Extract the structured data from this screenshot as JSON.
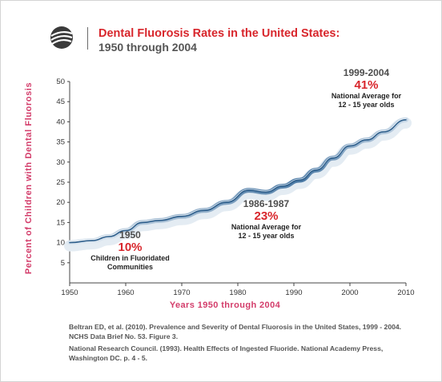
{
  "title": "Dental Fluorosis Rates in the United States:",
  "subtitle": "1950 through 2004",
  "chart_data": {
    "type": "line",
    "xlabel": "Years 1950 through 2004",
    "ylabel": "Percent of Children with Dental Fluorosis",
    "xlim": [
      1950,
      2010
    ],
    "ylim": [
      0,
      50
    ],
    "x_ticks": [
      "1950",
      "1960",
      "1970",
      "1980",
      "1990",
      "2000",
      "2010"
    ],
    "y_ticks": [
      "5",
      "10",
      "15",
      "20",
      "25",
      "30",
      "35",
      "40",
      "45",
      "50"
    ],
    "grid": false,
    "series": [
      {
        "x": [
          1950,
          1954,
          1957,
          1960,
          1963,
          1966,
          1970,
          1974,
          1978,
          1982,
          1985,
          1988,
          1991,
          1994,
          1997,
          2000,
          2003,
          2006,
          2010
        ],
        "y": [
          10,
          10.5,
          11.5,
          13,
          15,
          15.5,
          16.5,
          18,
          20,
          23,
          22.5,
          24,
          25.5,
          28,
          31,
          34,
          35.5,
          37.5,
          40.5
        ]
      }
    ],
    "annotations": [
      {
        "year": "1950",
        "percent": "10%",
        "desc": [
          "Children in Fluoridated",
          "Communities"
        ]
      },
      {
        "year": "1986-1987",
        "percent": "23%",
        "desc": [
          "National Average for",
          "12 - 15 year olds"
        ]
      },
      {
        "year": "1999-2004",
        "percent": "41%",
        "desc": [
          "National Average for",
          "12 - 15 year olds"
        ]
      }
    ]
  },
  "references": [
    [
      "Beltran ED, et al. (2010). Prevalence and Severity of Dental Fluorosis in the United States, 1999 - 2004.",
      "NCHS Data Brief No. 53. Figure 3."
    ],
    [
      "National Research Council. (1993). Health Effects of Ingested Fluoride. National Academy Press,",
      "Washington DC. p. 4 - 5."
    ]
  ],
  "colors": {
    "title": "#d8262c",
    "axis_label": "#d33c6a",
    "line": "#2e5f8c"
  }
}
